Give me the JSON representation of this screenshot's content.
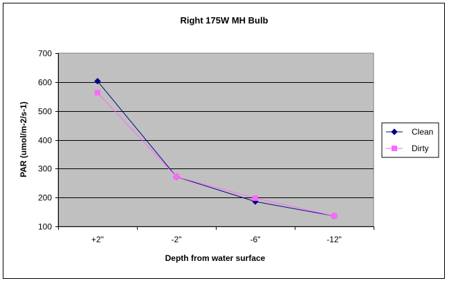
{
  "chart_data": {
    "type": "line",
    "title": "Right 175W  MH Bulb",
    "xlabel": "Depth from water surface",
    "ylabel": "PAR (umol/m-2/s-1)",
    "categories": [
      "+2\"",
      "-2\"",
      "-6\"",
      "-12\""
    ],
    "ylim": [
      100,
      700
    ],
    "yticks": [
      100,
      200,
      300,
      400,
      500,
      600,
      700
    ],
    "grid": true,
    "legend_position": "right",
    "plot_background": "#C0C0C0",
    "series": [
      {
        "name": "Clean",
        "values": [
          603,
          272,
          186,
          136
        ],
        "color": "#000080",
        "marker": "diamond"
      },
      {
        "name": "Dirty",
        "values": [
          563,
          272,
          198,
          136
        ],
        "color": "#FF66FF",
        "marker": "square"
      }
    ]
  }
}
